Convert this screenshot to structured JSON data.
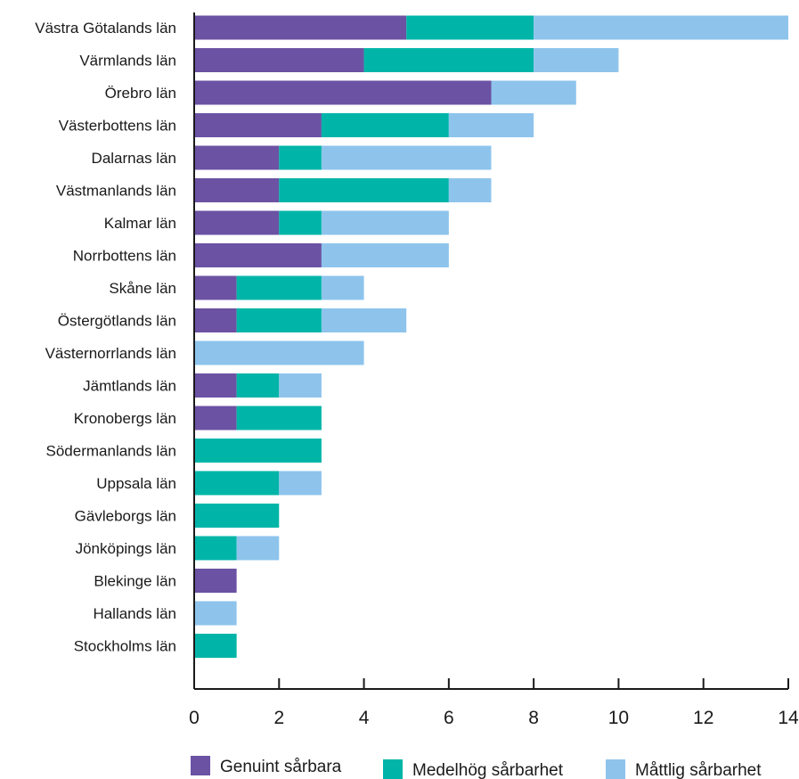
{
  "chart_data": {
    "type": "bar",
    "orientation": "horizontal",
    "stacked": true,
    "title": "",
    "xlabel": "",
    "ylabel": "",
    "xlim": [
      0,
      14
    ],
    "x_ticks": [
      0,
      2,
      4,
      6,
      8,
      10,
      12,
      14
    ],
    "grid": false,
    "legend_position": "bottom",
    "categories": [
      "Västra Götalands län",
      "Värmlands län",
      "Örebro län",
      "Västerbottens län",
      "Dalarnas län",
      "Västmanlands län",
      "Kalmar län",
      "Norrbottens län",
      "Skåne län",
      "Östergötlands län",
      "Västernorrlands län",
      "Jämtlands län",
      "Kronobergs län",
      "Södermanlands län",
      "Uppsala län",
      "Gävleborgs län",
      "Jönköpings län",
      "Blekinge län",
      "Hallands län",
      "Stockholms län"
    ],
    "series": [
      {
        "name": "Genuint sårbara",
        "color": "#6b52a3",
        "values": [
          5,
          4,
          7,
          3,
          2,
          2,
          2,
          3,
          1,
          1,
          0,
          1,
          1,
          0,
          0,
          0,
          0,
          1,
          0,
          0
        ]
      },
      {
        "name": "Medelhög sårbarhet",
        "color": "#00b5a8",
        "values": [
          3,
          4,
          0,
          3,
          1,
          4,
          1,
          0,
          2,
          2,
          0,
          1,
          2,
          3,
          2,
          2,
          1,
          0,
          0,
          1
        ]
      },
      {
        "name": "Måttlig sårbarhet",
        "color": "#8ec4ec",
        "values": [
          6,
          2,
          2,
          2,
          4,
          1,
          3,
          3,
          1,
          2,
          4,
          1,
          0,
          0,
          1,
          0,
          1,
          0,
          1,
          0
        ]
      }
    ]
  }
}
